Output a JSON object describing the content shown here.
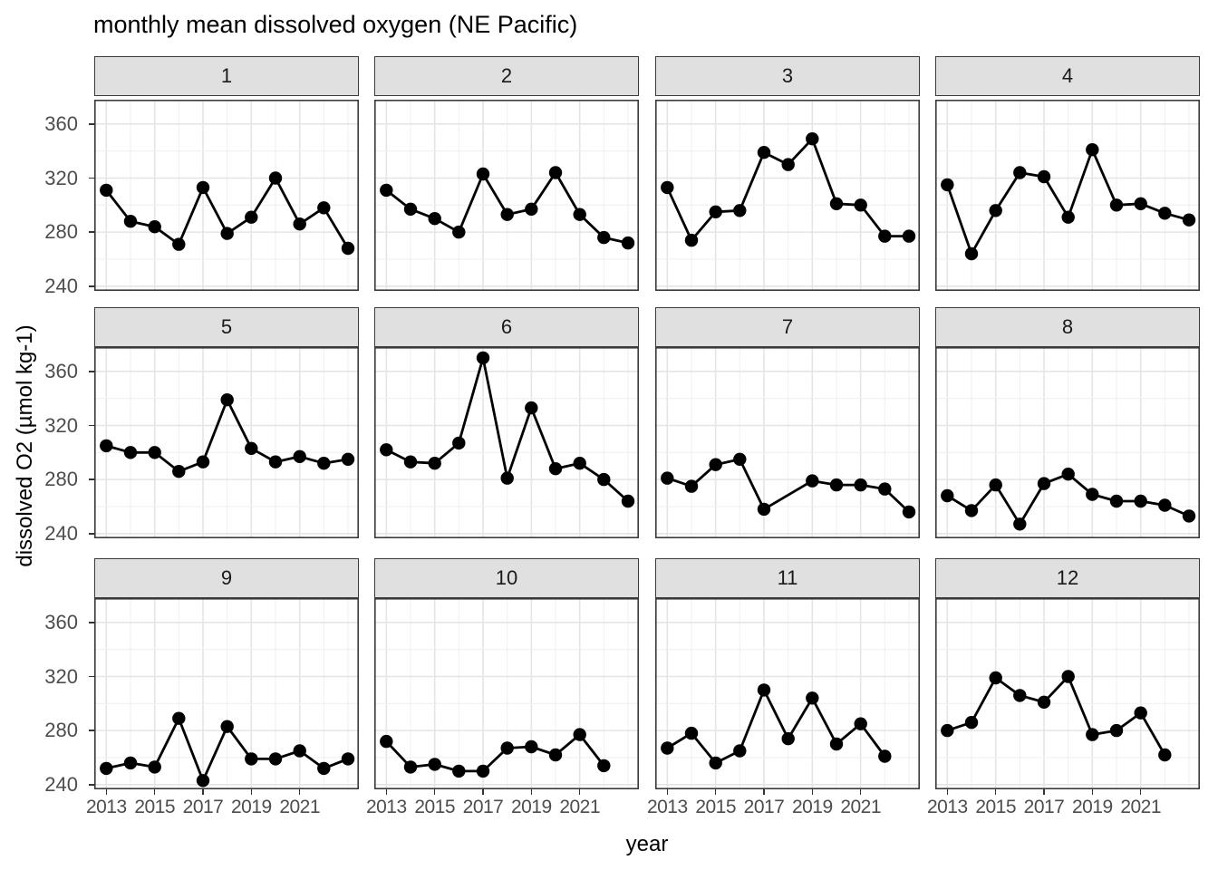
{
  "title": "monthly mean dissolved oxygen (NE Pacific)",
  "chart_data": {
    "type": "line",
    "title": "monthly mean dissolved oxygen (NE Pacific)",
    "xlabel": "year",
    "ylabel": "dissolved O2 (µmol kg-1)",
    "facet_variable": "month",
    "layout": "3 rows x 4 columns, shared axes",
    "x_ticks": [
      2013,
      2015,
      2017,
      2019,
      2021
    ],
    "y_ticks": [
      240,
      280,
      320,
      360
    ],
    "y_minor_ticks": [
      260,
      300,
      340
    ],
    "xlim": [
      2012.5,
      2023.45
    ],
    "ylim": [
      236.5,
      378
    ],
    "grid": true,
    "legend": "none",
    "marker": "filled-circle",
    "facets": [
      {
        "label": "1",
        "x": [
          2013,
          2014,
          2015,
          2016,
          2017,
          2018,
          2019,
          2020,
          2021,
          2022,
          2023
        ],
        "y": [
          311,
          288,
          284,
          271,
          313,
          279,
          291,
          320,
          286,
          298,
          268
        ]
      },
      {
        "label": "2",
        "x": [
          2013,
          2014,
          2015,
          2016,
          2017,
          2018,
          2019,
          2020,
          2021,
          2022,
          2023
        ],
        "y": [
          311,
          297,
          290,
          280,
          323,
          293,
          297,
          324,
          293,
          276,
          272
        ]
      },
      {
        "label": "3",
        "x": [
          2013,
          2014,
          2015,
          2016,
          2017,
          2018,
          2019,
          2020,
          2021,
          2022,
          2023
        ],
        "y": [
          313,
          274,
          295,
          296,
          339,
          330,
          349,
          301,
          300,
          277,
          277
        ]
      },
      {
        "label": "4",
        "x": [
          2013,
          2014,
          2015,
          2016,
          2017,
          2018,
          2019,
          2020,
          2021,
          2022,
          2023
        ],
        "y": [
          315,
          264,
          296,
          324,
          321,
          291,
          341,
          300,
          301,
          294,
          289
        ]
      },
      {
        "label": "5",
        "x": [
          2013,
          2014,
          2015,
          2016,
          2017,
          2018,
          2019,
          2020,
          2021,
          2022,
          2023
        ],
        "y": [
          305,
          300,
          300,
          286,
          293,
          339,
          303,
          293,
          297,
          292,
          295
        ]
      },
      {
        "label": "6",
        "x": [
          2013,
          2014,
          2015,
          2016,
          2017,
          2018,
          2019,
          2020,
          2021,
          2022,
          2023
        ],
        "y": [
          302,
          293,
          292,
          307,
          370,
          281,
          333,
          288,
          292,
          280,
          264
        ]
      },
      {
        "label": "7",
        "x": [
          2013,
          2014,
          2015,
          2016,
          2017,
          2019,
          2020,
          2021,
          2022,
          2023
        ],
        "y": [
          281,
          275,
          291,
          295,
          258,
          279,
          276,
          276,
          273,
          256
        ]
      },
      {
        "label": "8",
        "x": [
          2013,
          2014,
          2015,
          2016,
          2017,
          2018,
          2019,
          2020,
          2021,
          2022,
          2023
        ],
        "y": [
          268,
          257,
          276,
          247,
          277,
          284,
          269,
          264,
          264,
          261,
          253
        ]
      },
      {
        "label": "9",
        "x": [
          2013,
          2014,
          2015,
          2016,
          2017,
          2018,
          2019,
          2020,
          2021,
          2022,
          2023
        ],
        "y": [
          252,
          256,
          253,
          289,
          243,
          283,
          259,
          259,
          265,
          252,
          259
        ]
      },
      {
        "label": "10",
        "x": [
          2013,
          2014,
          2015,
          2016,
          2017,
          2018,
          2019,
          2020,
          2021,
          2022
        ],
        "y": [
          272,
          253,
          255,
          250,
          250,
          267,
          268,
          262,
          277,
          254
        ]
      },
      {
        "label": "11",
        "x": [
          2013,
          2014,
          2015,
          2016,
          2017,
          2018,
          2019,
          2020,
          2021,
          2022
        ],
        "y": [
          267,
          278,
          256,
          265,
          310,
          274,
          304,
          270,
          285,
          261
        ]
      },
      {
        "label": "12",
        "x": [
          2013,
          2014,
          2015,
          2016,
          2017,
          2018,
          2019,
          2020,
          2021,
          2022
        ],
        "y": [
          280,
          286,
          319,
          306,
          301,
          320,
          277,
          280,
          293,
          262
        ]
      }
    ]
  },
  "colors": {
    "line": "#000000",
    "point": "#000000",
    "strip_fill": "#e0e0e0",
    "strip_border": "#3a3a3a",
    "panel_border": "#3a3a3a",
    "grid_major": "#e5e5e5",
    "grid_minor": "#f0f0f0",
    "axis_text": "#4d4d4d",
    "tick_mark": "#333333",
    "title_text": "#000000"
  }
}
